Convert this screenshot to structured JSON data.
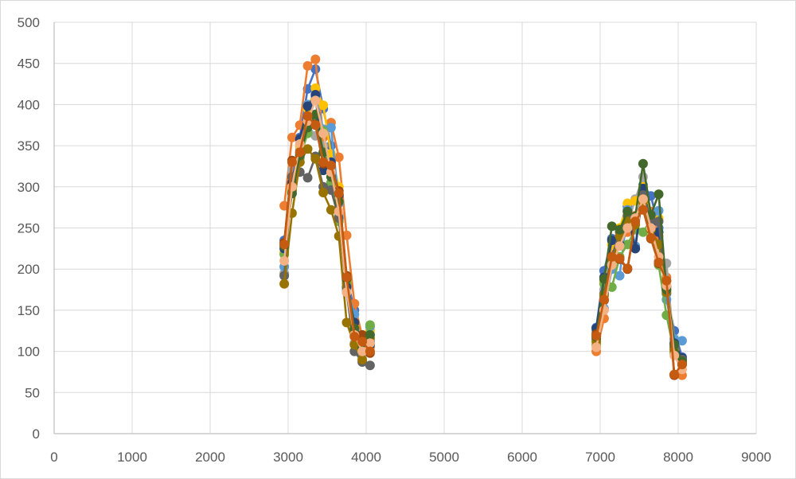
{
  "chart_data": {
    "type": "scatter",
    "title": "",
    "xlabel": "",
    "ylabel": "",
    "xlim": [
      0,
      9000
    ],
    "ylim": [
      0,
      500
    ],
    "x_ticks": [
      0,
      1000,
      2000,
      3000,
      4000,
      5000,
      6000,
      7000,
      8000,
      9000
    ],
    "y_ticks": [
      0,
      50,
      100,
      150,
      200,
      250,
      300,
      350,
      400,
      450,
      500
    ],
    "grid": true,
    "legend": "none",
    "series": [
      {
        "color": "#4472C4",
        "points": [
          [
            2950,
            235
          ],
          [
            3050,
            310
          ],
          [
            3150,
            360
          ],
          [
            3250,
            419
          ],
          [
            3350,
            443
          ],
          [
            3450,
            395
          ],
          [
            3550,
            350
          ],
          [
            3650,
            290
          ],
          [
            3750,
            190
          ],
          [
            3850,
            150
          ],
          [
            3950,
            100
          ],
          [
            4050,
            112
          ],
          [
            6950,
            129
          ],
          [
            7050,
            198
          ],
          [
            7150,
            237
          ],
          [
            7250,
            240
          ],
          [
            7350,
            276
          ],
          [
            7450,
            225
          ],
          [
            7550,
            302
          ],
          [
            7650,
            289
          ],
          [
            7750,
            250
          ],
          [
            7850,
            170
          ],
          [
            7950,
            125
          ],
          [
            8050,
            93
          ]
        ]
      },
      {
        "color": "#ED7D31",
        "points": [
          [
            2950,
            277
          ],
          [
            3050,
            360
          ],
          [
            3150,
            375
          ],
          [
            3250,
            447
          ],
          [
            3350,
            455
          ],
          [
            3450,
            360
          ],
          [
            3550,
            378
          ],
          [
            3650,
            336
          ],
          [
            3750,
            241
          ],
          [
            3850,
            158
          ],
          [
            3950,
            118
          ],
          [
            4050,
            105
          ],
          [
            6950,
            100
          ],
          [
            7050,
            140
          ],
          [
            7150,
            218
          ],
          [
            7250,
            230
          ],
          [
            7350,
            245
          ],
          [
            7450,
            265
          ],
          [
            7550,
            280
          ],
          [
            7650,
            270
          ],
          [
            7750,
            240
          ],
          [
            7850,
            190
          ],
          [
            7950,
            72
          ],
          [
            8050,
            71
          ]
        ]
      },
      {
        "color": "#A5A5A5",
        "points": [
          [
            2950,
            195
          ],
          [
            3050,
            320
          ],
          [
            3150,
            345
          ],
          [
            3250,
            375
          ],
          [
            3350,
            362
          ],
          [
            3450,
            350
          ],
          [
            3550,
            300
          ],
          [
            3650,
            265
          ],
          [
            3750,
            180
          ],
          [
            3850,
            110
          ],
          [
            3950,
            95
          ],
          [
            4050,
            120
          ],
          [
            6950,
            118
          ],
          [
            7050,
            175
          ],
          [
            7150,
            210
          ],
          [
            7250,
            248
          ],
          [
            7350,
            255
          ],
          [
            7450,
            285
          ],
          [
            7550,
            312
          ],
          [
            7650,
            262
          ],
          [
            7750,
            210
          ],
          [
            7850,
            207
          ],
          [
            7950,
            100
          ],
          [
            8050,
            90
          ]
        ]
      },
      {
        "color": "#FFC000",
        "points": [
          [
            2950,
            220
          ],
          [
            3050,
            300
          ],
          [
            3150,
            350
          ],
          [
            3250,
            395
          ],
          [
            3350,
            420
          ],
          [
            3450,
            399
          ],
          [
            3550,
            340
          ],
          [
            3650,
            300
          ],
          [
            3750,
            185
          ],
          [
            3850,
            130
          ],
          [
            3950,
            105
          ],
          [
            4050,
            125
          ],
          [
            6950,
            122
          ],
          [
            7050,
            185
          ],
          [
            7150,
            230
          ],
          [
            7250,
            250
          ],
          [
            7350,
            280
          ],
          [
            7450,
            283
          ],
          [
            7550,
            300
          ],
          [
            7650,
            265
          ],
          [
            7750,
            262
          ],
          [
            7850,
            180
          ],
          [
            7950,
            115
          ],
          [
            8050,
            88
          ]
        ]
      },
      {
        "color": "#5B9BD5",
        "points": [
          [
            2950,
            203
          ],
          [
            3050,
            312
          ],
          [
            3150,
            340
          ],
          [
            3250,
            400
          ],
          [
            3350,
            410
          ],
          [
            3450,
            370
          ],
          [
            3550,
            372
          ],
          [
            3650,
            280
          ],
          [
            3750,
            175
          ],
          [
            3850,
            145
          ],
          [
            3950,
            108
          ],
          [
            4050,
            130
          ],
          [
            6950,
            125
          ],
          [
            7050,
            152
          ],
          [
            7150,
            200
          ],
          [
            7250,
            192
          ],
          [
            7350,
            272
          ],
          [
            7450,
            228
          ],
          [
            7550,
            295
          ],
          [
            7650,
            258
          ],
          [
            7750,
            271
          ],
          [
            7850,
            163
          ],
          [
            7950,
            115
          ],
          [
            8050,
            113
          ]
        ]
      },
      {
        "color": "#70AD47",
        "points": [
          [
            2950,
            218
          ],
          [
            3050,
            295
          ],
          [
            3150,
            335
          ],
          [
            3250,
            365
          ],
          [
            3350,
            385
          ],
          [
            3450,
            368
          ],
          [
            3550,
            305
          ],
          [
            3650,
            258
          ],
          [
            3750,
            182
          ],
          [
            3850,
            125
          ],
          [
            3950,
            112
          ],
          [
            4050,
            132
          ],
          [
            6950,
            108
          ],
          [
            7050,
            182
          ],
          [
            7150,
            178
          ],
          [
            7250,
            215
          ],
          [
            7350,
            230
          ],
          [
            7450,
            248
          ],
          [
            7550,
            245
          ],
          [
            7650,
            260
          ],
          [
            7750,
            205
          ],
          [
            7850,
            144
          ],
          [
            7950,
            98
          ],
          [
            8050,
            85
          ]
        ]
      },
      {
        "color": "#264478",
        "points": [
          [
            2950,
            225
          ],
          [
            3050,
            305
          ],
          [
            3150,
            358
          ],
          [
            3250,
            398
          ],
          [
            3350,
            412
          ],
          [
            3450,
            320
          ],
          [
            3550,
            330
          ],
          [
            3650,
            290
          ],
          [
            3750,
            178
          ],
          [
            3850,
            135
          ],
          [
            3950,
            110
          ],
          [
            4050,
            108
          ],
          [
            6950,
            128
          ],
          [
            7050,
            190
          ],
          [
            7150,
            235
          ],
          [
            7250,
            230
          ],
          [
            7350,
            270
          ],
          [
            7450,
            225
          ],
          [
            7550,
            298
          ],
          [
            7650,
            255
          ],
          [
            7750,
            245
          ],
          [
            7850,
            178
          ],
          [
            7950,
            110
          ],
          [
            8050,
            92
          ]
        ]
      },
      {
        "color": "#9E480E",
        "points": [
          [
            2950,
            232
          ],
          [
            3050,
            332
          ],
          [
            3150,
            330
          ],
          [
            3250,
            385
          ],
          [
            3350,
            376
          ],
          [
            3450,
            328
          ],
          [
            3550,
            325
          ],
          [
            3650,
            295
          ],
          [
            3750,
            192
          ],
          [
            3850,
            120
          ],
          [
            3950,
            120
          ],
          [
            4050,
            98
          ],
          [
            6950,
            121
          ],
          [
            7050,
            162
          ],
          [
            7150,
            214
          ],
          [
            7250,
            212
          ],
          [
            7350,
            200
          ],
          [
            7450,
            258
          ],
          [
            7550,
            273
          ],
          [
            7650,
            237
          ],
          [
            7750,
            207
          ],
          [
            7850,
            186
          ],
          [
            7950,
            71
          ],
          [
            8050,
            84
          ]
        ]
      },
      {
        "color": "#636363",
        "points": [
          [
            2950,
            192
          ],
          [
            3050,
            312
          ],
          [
            3150,
            318
          ],
          [
            3250,
            311
          ],
          [
            3350,
            337
          ],
          [
            3450,
            300
          ],
          [
            3550,
            296
          ],
          [
            3650,
            262
          ],
          [
            3750,
            172
          ],
          [
            3850,
            100
          ],
          [
            3950,
            87
          ],
          [
            4050,
            83
          ],
          [
            6950,
            115
          ],
          [
            7050,
            170
          ],
          [
            7150,
            215
          ],
          [
            7250,
            245
          ],
          [
            7350,
            265
          ],
          [
            7450,
            260
          ],
          [
            7550,
            290
          ],
          [
            7650,
            260
          ],
          [
            7750,
            258
          ],
          [
            7850,
            175
          ],
          [
            7950,
            105
          ],
          [
            8050,
            90
          ]
        ]
      },
      {
        "color": "#997300",
        "points": [
          [
            2950,
            182
          ],
          [
            3050,
            268
          ],
          [
            3150,
            330
          ],
          [
            3250,
            346
          ],
          [
            3350,
            334
          ],
          [
            3450,
            293
          ],
          [
            3550,
            272
          ],
          [
            3650,
            240
          ],
          [
            3750,
            135
          ],
          [
            3850,
            108
          ],
          [
            3950,
            90
          ],
          [
            4050,
            116
          ],
          [
            6950,
            112
          ],
          [
            7050,
            168
          ],
          [
            7150,
            208
          ],
          [
            7250,
            240
          ],
          [
            7350,
            258
          ],
          [
            7450,
            254
          ],
          [
            7550,
            282
          ],
          [
            7650,
            248
          ],
          [
            7750,
            230
          ],
          [
            7850,
            172
          ],
          [
            7950,
            102
          ],
          [
            8050,
            86
          ]
        ]
      },
      {
        "color": "#43682B",
        "points": [
          [
            2950,
            228
          ],
          [
            3050,
            292
          ],
          [
            3150,
            338
          ],
          [
            3250,
            372
          ],
          [
            3350,
            388
          ],
          [
            3450,
            342
          ],
          [
            3550,
            312
          ],
          [
            3650,
            282
          ],
          [
            3750,
            188
          ],
          [
            3850,
            128
          ],
          [
            3950,
            104
          ],
          [
            4050,
            120
          ],
          [
            6950,
            118
          ],
          [
            7050,
            188
          ],
          [
            7150,
            252
          ],
          [
            7250,
            248
          ],
          [
            7350,
            270
          ],
          [
            7450,
            264
          ],
          [
            7550,
            328
          ],
          [
            7650,
            266
          ],
          [
            7750,
            291
          ],
          [
            7850,
            175
          ],
          [
            7950,
            108
          ],
          [
            8050,
            88
          ]
        ]
      },
      {
        "color": "#F4B183",
        "points": [
          [
            2950,
            210
          ],
          [
            3050,
            300
          ],
          [
            3150,
            352
          ],
          [
            3250,
            380
          ],
          [
            3350,
            405
          ],
          [
            3450,
            365
          ],
          [
            3550,
            318
          ],
          [
            3650,
            270
          ],
          [
            3750,
            172
          ],
          [
            3850,
            120
          ],
          [
            3950,
            100
          ],
          [
            4050,
            110
          ],
          [
            6950,
            105
          ],
          [
            7050,
            150
          ],
          [
            7150,
            205
          ],
          [
            7250,
            228
          ],
          [
            7350,
            250
          ],
          [
            7450,
            262
          ],
          [
            7550,
            285
          ],
          [
            7650,
            250
          ],
          [
            7750,
            215
          ],
          [
            7850,
            180
          ],
          [
            7950,
            95
          ],
          [
            8050,
            78
          ]
        ]
      },
      {
        "color": "#C55A11",
        "points": [
          [
            2950,
            230
          ],
          [
            3050,
            330
          ],
          [
            3150,
            342
          ],
          [
            3250,
            386
          ],
          [
            3350,
            375
          ],
          [
            3450,
            330
          ],
          [
            3550,
            326
          ],
          [
            3650,
            292
          ],
          [
            3750,
            190
          ],
          [
            3850,
            118
          ],
          [
            3950,
            112
          ],
          [
            4050,
            100
          ],
          [
            6950,
            119
          ],
          [
            7050,
            163
          ],
          [
            7150,
            215
          ],
          [
            7250,
            213
          ],
          [
            7350,
            201
          ],
          [
            7450,
            258
          ],
          [
            7550,
            272
          ],
          [
            7650,
            238
          ],
          [
            7750,
            208
          ],
          [
            7850,
            186
          ],
          [
            7950,
            72
          ],
          [
            8050,
            84
          ]
        ]
      }
    ]
  }
}
